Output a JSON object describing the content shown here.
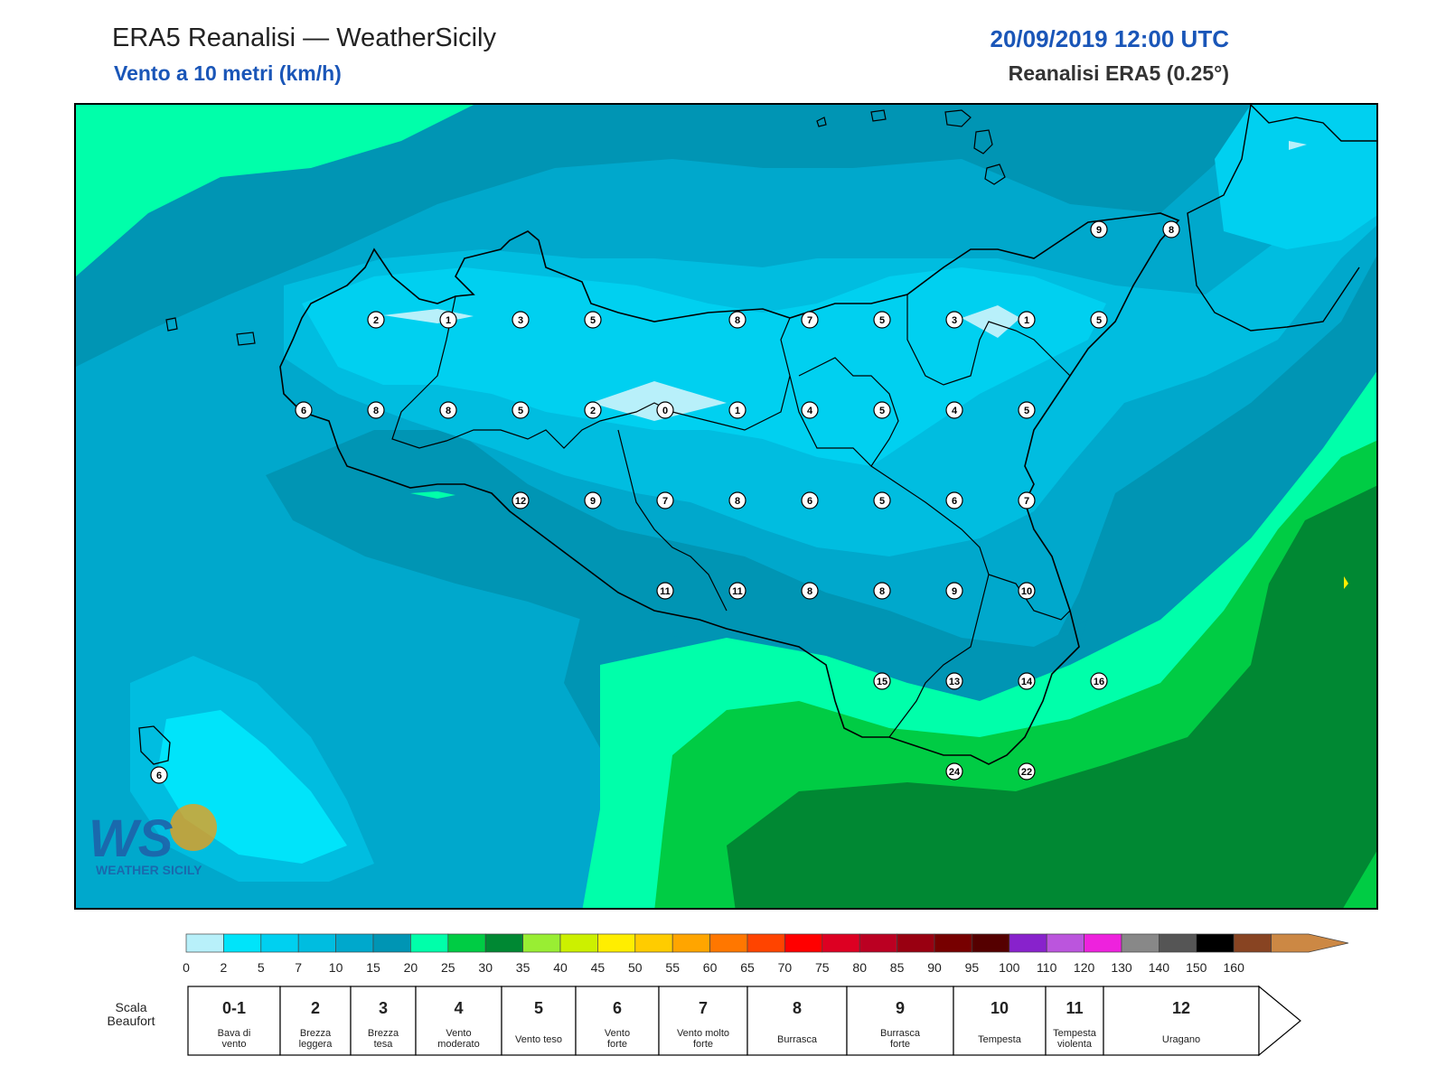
{
  "header": {
    "title": "ERA5 Reanalisi — WeatherSicily",
    "subtitle": "Vento a 10 metri (km/h)",
    "datetime": "20/09/2019 12:00 UTC",
    "model": "Reanalisi ERA5 (0.25°)"
  },
  "watermark": {
    "text": "WEATHER SICILY",
    "logo": "WS"
  },
  "stations": [
    {
      "v": "2"
    },
    {
      "v": "1"
    },
    {
      "v": "3"
    },
    {
      "v": "5"
    },
    {
      "v": "8"
    },
    {
      "v": "7"
    },
    {
      "v": "5"
    },
    {
      "v": "3"
    },
    {
      "v": "1"
    },
    {
      "v": "5"
    },
    {
      "v": "6"
    },
    {
      "v": "8"
    },
    {
      "v": "8"
    },
    {
      "v": "5"
    },
    {
      "v": "2"
    },
    {
      "v": "0"
    },
    {
      "v": "1"
    },
    {
      "v": "4"
    },
    {
      "v": "5"
    },
    {
      "v": "4"
    },
    {
      "v": "5"
    },
    {
      "v": "12"
    },
    {
      "v": "9"
    },
    {
      "v": "7"
    },
    {
      "v": "8"
    },
    {
      "v": "6"
    },
    {
      "v": "5"
    },
    {
      "v": "6"
    },
    {
      "v": "7"
    },
    {
      "v": "11"
    },
    {
      "v": "11"
    },
    {
      "v": "8"
    },
    {
      "v": "8"
    },
    {
      "v": "9"
    },
    {
      "v": "10"
    },
    {
      "v": "15"
    },
    {
      "v": "13"
    },
    {
      "v": "14"
    },
    {
      "v": "16"
    },
    {
      "v": "24"
    },
    {
      "v": "22"
    },
    {
      "v": "9"
    },
    {
      "v": "8"
    },
    {
      "v": "6"
    }
  ],
  "colorbar": {
    "colors": [
      "#b8f0fa",
      "#00e4fa",
      "#00d0f0",
      "#00bde0",
      "#00a8cc",
      "#0095b4",
      "#00ffaa",
      "#00cc44",
      "#008833",
      "#99ee33",
      "#ccf000",
      "#ffee00",
      "#ffcc00",
      "#ffa500",
      "#ff7700",
      "#ff4400",
      "#ff0000",
      "#dd0022",
      "#bb0022",
      "#990011",
      "#770000",
      "#550000",
      "#8822cc",
      "#bb55dd",
      "#ee22dd",
      "#888888",
      "#555555",
      "#000000",
      "#884422",
      "#cc8844"
    ],
    "ticks": [
      "0",
      "2",
      "5",
      "7",
      "10",
      "15",
      "20",
      "25",
      "30",
      "35",
      "40",
      "45",
      "50",
      "55",
      "60",
      "65",
      "70",
      "75",
      "80",
      "85",
      "90",
      "95",
      "100",
      "110",
      "120",
      "130",
      "140",
      "150",
      "160"
    ]
  },
  "beaufort": {
    "label_line1": "Scala",
    "label_line2": "Beaufort",
    "cells": [
      {
        "num": "0-1",
        "desc1": "Bava di",
        "desc2": "vento"
      },
      {
        "num": "2",
        "desc1": "Brezza",
        "desc2": "leggera"
      },
      {
        "num": "3",
        "desc1": "Brezza",
        "desc2": "tesa"
      },
      {
        "num": "4",
        "desc1": "Vento",
        "desc2": "moderato"
      },
      {
        "num": "5",
        "desc1": "Vento teso",
        "desc2": ""
      },
      {
        "num": "6",
        "desc1": "Vento",
        "desc2": "forte"
      },
      {
        "num": "7",
        "desc1": "Vento molto",
        "desc2": "forte"
      },
      {
        "num": "8",
        "desc1": "Burrasca",
        "desc2": ""
      },
      {
        "num": "9",
        "desc1": "Burrasca",
        "desc2": "forte"
      },
      {
        "num": "10",
        "desc1": "Tempesta",
        "desc2": ""
      },
      {
        "num": "11",
        "desc1": "Tempesta",
        "desc2": "violenta"
      },
      {
        "num": "12",
        "desc1": "Uragano",
        "desc2": ""
      }
    ]
  }
}
